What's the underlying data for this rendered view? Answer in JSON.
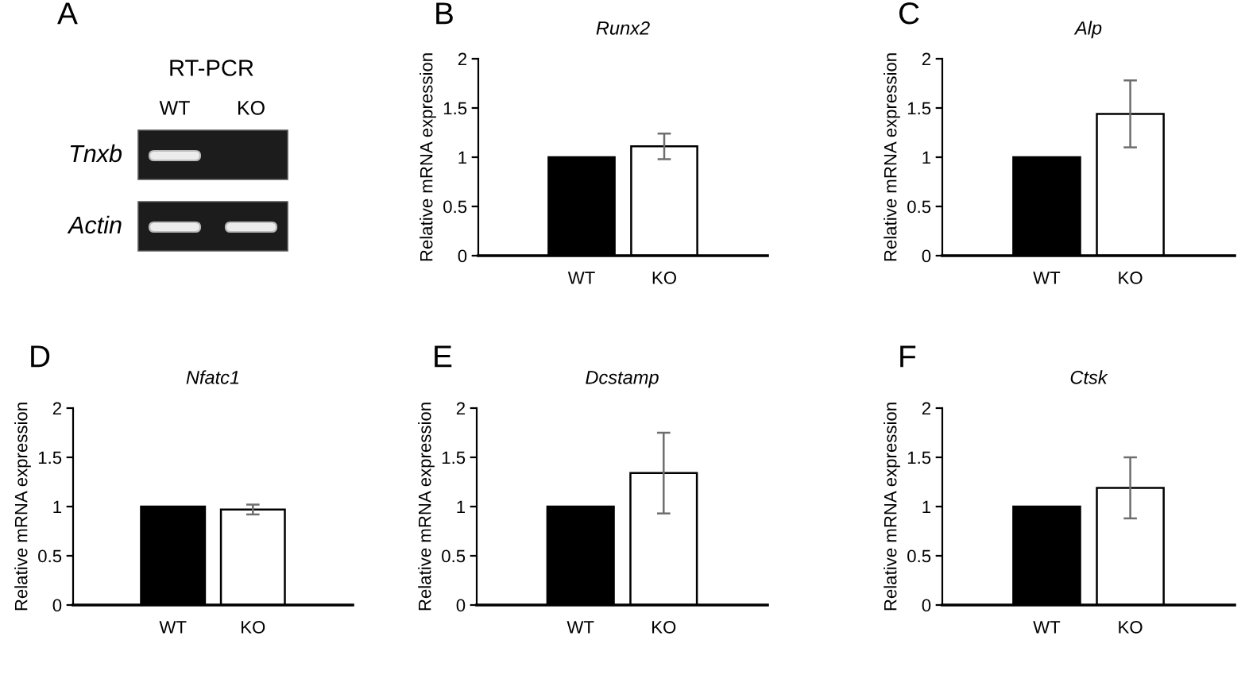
{
  "chart_data": [
    {
      "type": "other",
      "title": "RT-PCR",
      "categories": [
        "WT",
        "KO"
      ],
      "y_categories": [
        "Tnxb",
        "Actin"
      ],
      "annotations": [
        "A"
      ]
    },
    {
      "type": "bar",
      "title": "Runx2",
      "ylabel": "Relative mRNA expression",
      "categories": [
        "WT",
        "KO"
      ],
      "values": [
        1,
        1.11
      ],
      "colors": [
        "#000000",
        "#ffffff"
      ],
      "errors": [
        null,
        0.13
      ],
      "ylim": [
        0,
        2
      ],
      "yticks": [
        0,
        0.5,
        1,
        1.5,
        2
      ],
      "annotations": [
        "B"
      ]
    },
    {
      "type": "bar",
      "title": "Alp",
      "ylabel": "Relative mRNA expression",
      "categories": [
        "WT",
        "KO"
      ],
      "values": [
        1,
        1.44
      ],
      "colors": [
        "#000000",
        "#ffffff"
      ],
      "errors": [
        null,
        0.34
      ],
      "ylim": [
        0,
        2
      ],
      "yticks": [
        0,
        0.5,
        1,
        1.5,
        2
      ],
      "annotations": [
        "C"
      ]
    },
    {
      "type": "bar",
      "title": "Nfatc1",
      "ylabel": "Relative mRNA expression",
      "categories": [
        "WT",
        "KO"
      ],
      "values": [
        1,
        0.97
      ],
      "colors": [
        "#000000",
        "#ffffff"
      ],
      "errors": [
        null,
        0.05
      ],
      "ylim": [
        0,
        2
      ],
      "yticks": [
        0,
        0.5,
        1,
        1.5,
        2
      ],
      "annotations": [
        "D"
      ]
    },
    {
      "type": "bar",
      "title": "Dcstamp",
      "ylabel": "Relative mRNA expression",
      "categories": [
        "WT",
        "KO"
      ],
      "values": [
        1,
        1.34
      ],
      "colors": [
        "#000000",
        "#ffffff"
      ],
      "errors": [
        null,
        0.41
      ],
      "ylim": [
        0,
        2
      ],
      "yticks": [
        0,
        0.5,
        1,
        1.5,
        2
      ],
      "annotations": [
        "E"
      ]
    },
    {
      "type": "bar",
      "title": "Ctsk",
      "ylabel": "Relative mRNA expression",
      "categories": [
        "WT",
        "KO"
      ],
      "values": [
        1,
        1.19
      ],
      "colors": [
        "#000000",
        "#ffffff"
      ],
      "errors": [
        null,
        0.31
      ],
      "ylim": [
        0,
        2
      ],
      "yticks": [
        0,
        0.5,
        1,
        1.5,
        2
      ],
      "annotations": [
        "F"
      ]
    }
  ]
}
